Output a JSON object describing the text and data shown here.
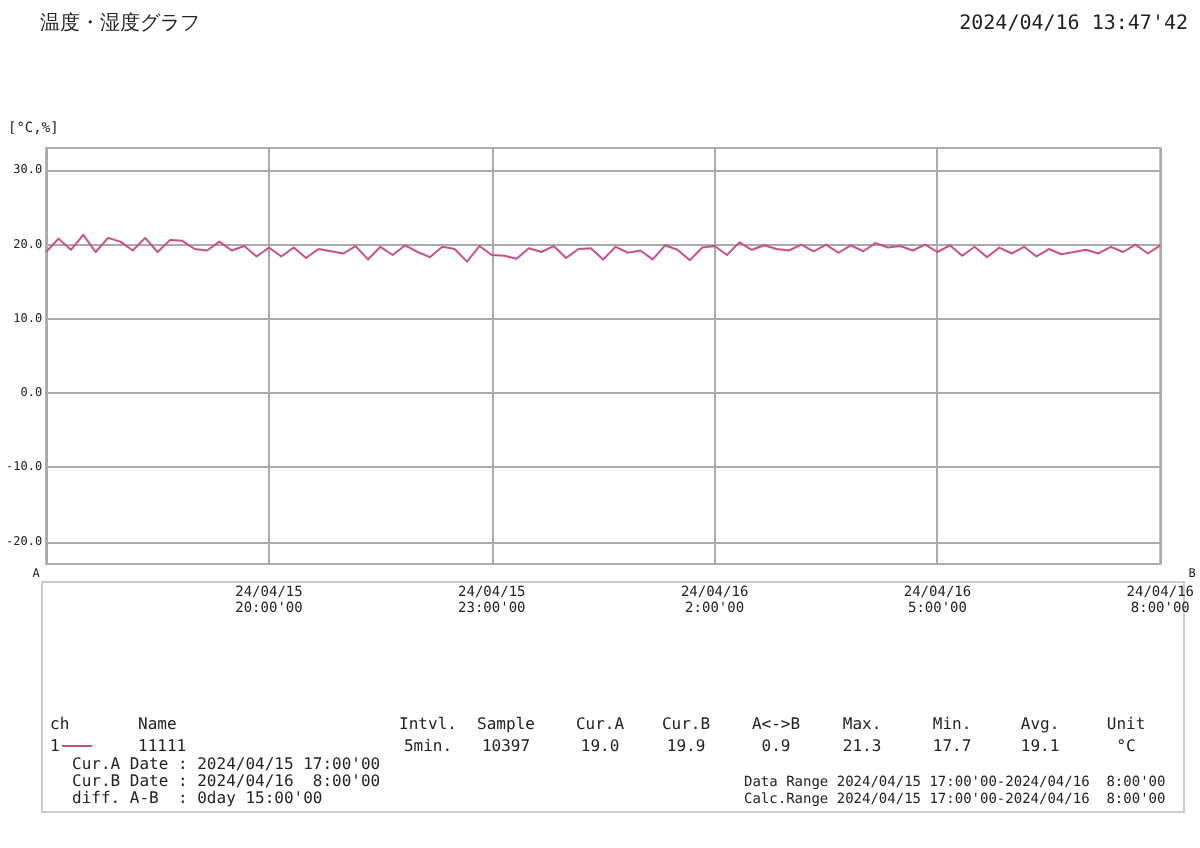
{
  "chart_data": {
    "type": "line",
    "title": "温度・湿度グラフ",
    "subtitle": "2024/04/16 13:47'42",
    "ylabel": "[°C,%]",
    "xlim": [
      "2024-04-15T17:00",
      "2024-04-16T08:00"
    ],
    "xticks": [
      {
        "value": "2024-04-15T20:00",
        "label": "24/04/15\n20:00'00"
      },
      {
        "value": "2024-04-15T23:00",
        "label": "24/04/15\n23:00'00"
      },
      {
        "value": "2024-04-16T02:00",
        "label": "24/04/16\n2:00'00"
      },
      {
        "value": "2024-04-16T05:00",
        "label": "24/04/16\n5:00'00"
      },
      {
        "value": "2024-04-16T08:00",
        "label": "24/04/16\n8:00'00"
      }
    ],
    "ylim": [
      -23,
      33
    ],
    "yticks": [
      {
        "value": -20,
        "label": "-20.0"
      },
      {
        "value": -10,
        "label": "-10.0"
      },
      {
        "value": 0,
        "label": "0.0"
      },
      {
        "value": 10,
        "label": "10.0"
      },
      {
        "value": 20,
        "label": "20.0"
      },
      {
        "value": 30,
        "label": "30.0"
      }
    ],
    "grid": true,
    "legend": false,
    "marker": "none",
    "line_style": "solid",
    "x": [
      "2024-04-15T17:00",
      "2024-04-15T17:10",
      "2024-04-15T17:20",
      "2024-04-15T17:30",
      "2024-04-15T17:40",
      "2024-04-15T17:50",
      "2024-04-15T18:00",
      "2024-04-15T18:10",
      "2024-04-15T18:20",
      "2024-04-15T18:30",
      "2024-04-15T18:40",
      "2024-04-15T18:50",
      "2024-04-15T19:00",
      "2024-04-15T19:10",
      "2024-04-15T19:20",
      "2024-04-15T19:30",
      "2024-04-15T19:40",
      "2024-04-15T19:50",
      "2024-04-15T20:00",
      "2024-04-15T20:10",
      "2024-04-15T20:20",
      "2024-04-15T20:30",
      "2024-04-15T20:40",
      "2024-04-15T20:50",
      "2024-04-15T21:00",
      "2024-04-15T21:10",
      "2024-04-15T21:20",
      "2024-04-15T21:30",
      "2024-04-15T21:40",
      "2024-04-15T21:50",
      "2024-04-15T22:00",
      "2024-04-15T22:10",
      "2024-04-15T22:20",
      "2024-04-15T22:30",
      "2024-04-15T22:40",
      "2024-04-15T22:50",
      "2024-04-15T23:00",
      "2024-04-15T23:10",
      "2024-04-15T23:20",
      "2024-04-15T23:30",
      "2024-04-15T23:40",
      "2024-04-15T23:50",
      "2024-04-16T00:00",
      "2024-04-16T00:10",
      "2024-04-16T00:20",
      "2024-04-16T00:30",
      "2024-04-16T00:40",
      "2024-04-16T00:50",
      "2024-04-16T01:00",
      "2024-04-16T01:10",
      "2024-04-16T01:20",
      "2024-04-16T01:30",
      "2024-04-16T01:40",
      "2024-04-16T01:50",
      "2024-04-16T02:00",
      "2024-04-16T02:10",
      "2024-04-16T02:20",
      "2024-04-16T02:30",
      "2024-04-16T02:40",
      "2024-04-16T02:50",
      "2024-04-16T03:00",
      "2024-04-16T03:10",
      "2024-04-16T03:20",
      "2024-04-16T03:30",
      "2024-04-16T03:40",
      "2024-04-16T03:50",
      "2024-04-16T04:00",
      "2024-04-16T04:10",
      "2024-04-16T04:20",
      "2024-04-16T04:30",
      "2024-04-16T04:40",
      "2024-04-16T04:50",
      "2024-04-16T05:00",
      "2024-04-16T05:10",
      "2024-04-16T05:20",
      "2024-04-16T05:30",
      "2024-04-16T05:40",
      "2024-04-16T05:50",
      "2024-04-16T06:00",
      "2024-04-16T06:10",
      "2024-04-16T06:20",
      "2024-04-16T06:30",
      "2024-04-16T06:40",
      "2024-04-16T06:50",
      "2024-04-16T07:00",
      "2024-04-16T07:10",
      "2024-04-16T07:20",
      "2024-04-16T07:30",
      "2024-04-16T07:40",
      "2024-04-16T07:50",
      "2024-04-16T08:00"
    ],
    "series": [
      {
        "name": "11111",
        "color": "#c8508a",
        "values": [
          19.0,
          20.8,
          19.3,
          21.3,
          19.0,
          20.9,
          20.4,
          19.2,
          20.9,
          19.0,
          20.6,
          20.5,
          19.4,
          19.2,
          20.4,
          19.2,
          19.8,
          18.4,
          19.6,
          18.4,
          19.6,
          18.2,
          19.4,
          19.1,
          18.8,
          19.8,
          18.0,
          19.7,
          18.6,
          19.9,
          19.0,
          18.3,
          19.7,
          19.4,
          17.7,
          19.8,
          18.6,
          18.5,
          18.1,
          19.5,
          19.0,
          19.8,
          18.2,
          19.4,
          19.5,
          18.0,
          19.7,
          18.9,
          19.2,
          18.0,
          19.9,
          19.3,
          17.9,
          19.6,
          19.8,
          18.6,
          20.3,
          19.3,
          19.9,
          19.4,
          19.2,
          20.0,
          19.1,
          20.0,
          18.9,
          19.9,
          19.1,
          20.2,
          19.6,
          19.8,
          19.2,
          20.0,
          19.0,
          19.9,
          18.5,
          19.7,
          18.3,
          19.6,
          18.8,
          19.7,
          18.4,
          19.4,
          18.7,
          19.0,
          19.3,
          18.8,
          19.7,
          19.0,
          20.0,
          18.8,
          19.9
        ]
      }
    ],
    "annotations": [
      "A",
      "B",
      "ch",
      "Name",
      "Intvl.",
      "Sample",
      "Cur.A",
      "Cur.B",
      "A<->B",
      "Max.",
      "Min.",
      "Avg.",
      "Unit",
      "1",
      "5min.",
      "10397",
      "19.0",
      "19.9",
      "0.9",
      "21.3",
      "17.7",
      "19.1",
      "°C",
      "Cur.A Date : 2024/04/15 17:00'00",
      "Cur.B Date : 2024/04/16  8:00'00",
      "diff. A-B  : 0day 15:00'00",
      "Data Range 2024/04/15 17:00'00-2024/04/16  8:00'00",
      "Calc.Range 2024/04/15 17:00'00-2024/04/16  8:00'00"
    ]
  }
}
